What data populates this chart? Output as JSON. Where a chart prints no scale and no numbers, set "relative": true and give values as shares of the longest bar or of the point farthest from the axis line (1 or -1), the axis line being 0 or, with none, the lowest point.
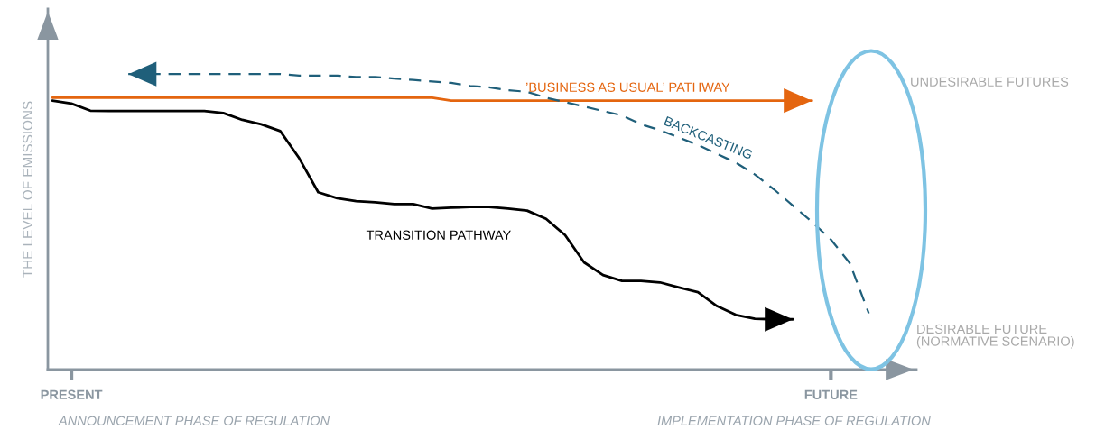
{
  "chart_data": {
    "type": "line",
    "relative": true,
    "ylabel": "THE LEVEL OF EMISSIONS",
    "categories": [
      null,
      "PRESENT",
      null,
      null,
      null,
      null,
      null,
      null,
      null,
      null,
      null,
      null,
      null,
      null,
      null,
      null,
      null,
      null,
      null,
      null,
      null,
      null,
      null,
      null,
      null,
      null,
      null,
      null,
      null,
      null,
      null,
      null,
      null,
      null,
      null,
      null,
      null,
      null,
      null,
      null,
      null,
      "FUTURE",
      null,
      null
    ],
    "series": [
      {
        "name": "’BUSINESS AS USUAL’ PATHWAY",
        "color": "#e4650f",
        "line_style": "solid",
        "values": [
          0.92,
          0.92,
          0.92,
          0.92,
          0.92,
          0.92,
          0.92,
          0.92,
          0.92,
          0.92,
          0.92,
          0.92,
          0.92,
          0.92,
          0.92,
          0.92,
          0.92,
          0.92,
          0.92,
          0.92,
          0.92,
          0.91,
          0.91,
          0.91,
          0.91,
          0.91,
          0.91,
          0.91,
          0.91,
          0.91,
          0.91,
          0.91,
          0.91,
          0.91,
          0.91,
          0.91,
          0.91,
          0.91,
          0.91,
          0.91,
          0.91,
          null,
          null,
          null
        ]
      },
      {
        "name": "BACKCASTING",
        "color": "#1f5f7a",
        "line_style": "dashed",
        "values": [
          null,
          null,
          null,
          null,
          1.0,
          1.0,
          1.0,
          1.0,
          1.0,
          1.0,
          1.0,
          1.0,
          1.0,
          0.995,
          0.995,
          0.995,
          0.99,
          0.99,
          0.985,
          0.98,
          0.975,
          0.97,
          0.96,
          0.955,
          0.945,
          0.94,
          0.92,
          0.905,
          0.89,
          0.875,
          0.86,
          0.83,
          0.81,
          0.785,
          0.76,
          0.73,
          0.7,
          0.66,
          0.61,
          0.555,
          0.5,
          0.44,
          0.36,
          0.19
        ]
      },
      {
        "name": "TRANSITION PATHWAY",
        "color": "#000000",
        "line_style": "solid",
        "values": [
          0.91,
          0.9,
          0.876,
          0.875,
          0.875,
          0.875,
          0.875,
          0.875,
          0.875,
          0.868,
          0.845,
          0.83,
          0.807,
          0.715,
          0.6,
          0.58,
          0.57,
          0.566,
          0.56,
          0.56,
          0.545,
          0.548,
          0.55,
          0.55,
          0.545,
          0.538,
          0.51,
          0.455,
          0.363,
          0.32,
          0.3,
          0.3,
          0.295,
          0.278,
          0.262,
          0.215,
          0.185,
          0.172,
          0.17,
          0.17,
          null,
          null,
          null,
          null
        ]
      }
    ],
    "annotations": [
      "UNDESIRABLE FUTURES",
      "DESIRABLE FUTURE\n(NORMATIVE SCENARIO)",
      "ANNOUNCEMENT PHASE OF REGULATION",
      "IMPLEMENTATION PHASE OF REGULATION"
    ]
  }
}
